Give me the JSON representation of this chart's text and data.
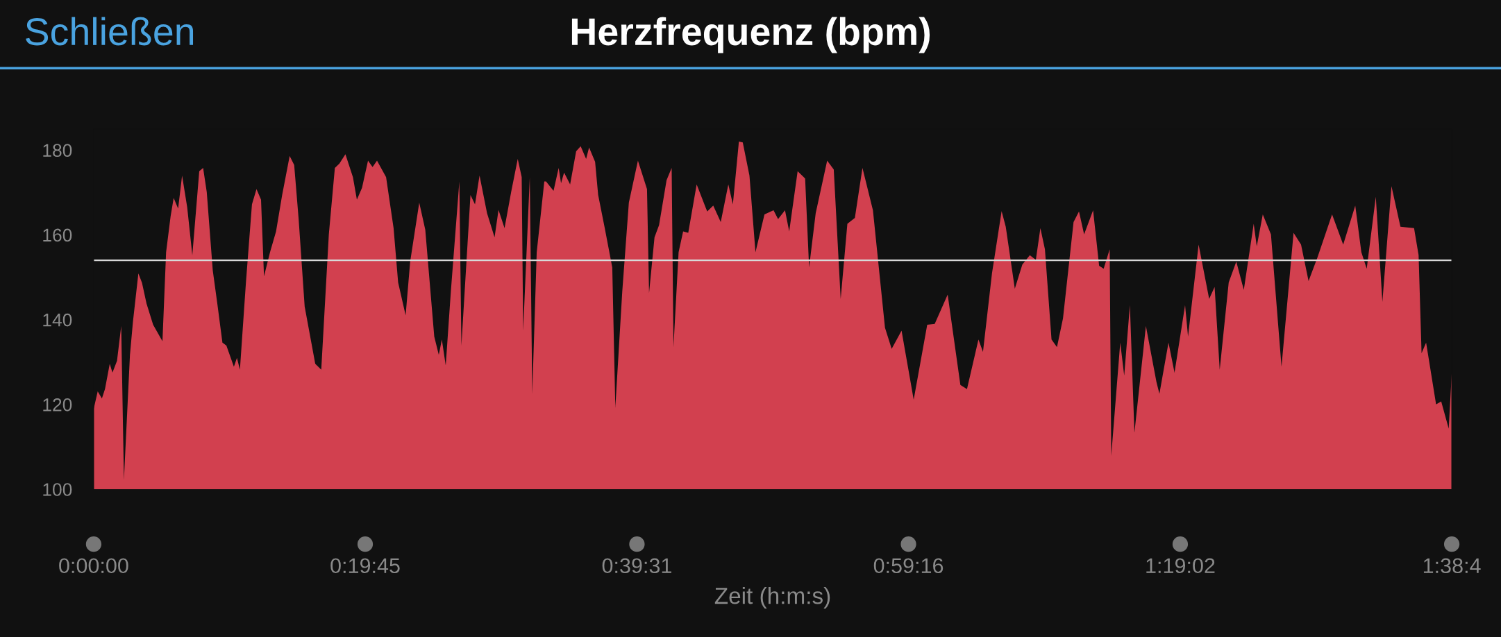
{
  "chart_data": {
    "type": "area",
    "title": "Herzfrequenz (bpm)",
    "xlabel": "Zeit (h:m:s)",
    "annotations": [
      "Schließen"
    ],
    "x": [
      0.0,
      0.0049,
      0.01,
      0.0137,
      0.0195,
      0.0228,
      0.0283,
      0.0334,
      0.0367,
      0.044,
      0.0476,
      0.0542,
      0.0586,
      0.0641,
      0.0721,
      0.0834,
      0.0878,
      0.0933,
      0.097,
      0.1024,
      0.1072,
      0.1134,
      0.1196,
      0.128,
      0.1327,
      0.1371,
      0.1444,
      0.1499,
      0.1561,
      0.1609,
      0.17,
      0.1737,
      0.1773,
      0.1846,
      0.1919,
      0.1974,
      0.2029,
      0.2065,
      0.2138,
      0.2211,
      0.2285,
      0.2376,
      0.2431,
      0.2485,
      0.2558,
      0.2686,
      0.2759,
      0.2851,
      0.2924,
      0.2979,
      0.3052,
      0.3143,
      0.3191,
      0.3253,
      0.3326,
      0.3381,
      0.3435,
      0.3545,
      0.3636,
      0.3691,
      0.3782,
      0.3837,
      0.3947,
      0.402,
      0.4129,
      0.4184,
      0.4221,
      0.4268,
      0.433,
      0.4433,
      0.4458,
      0.4568,
      0.4623,
      0.4678,
      0.4769,
      0.486,
      0.4908,
      0.4981,
      0.5061,
      0.5141,
      0.5189,
      0.5207,
      0.5287,
      0.5317,
      0.5371,
      0.5463,
      0.5484,
      0.5575,
      0.5637,
      0.5666,
      0.5703,
      0.5776,
      0.5849,
      0.5904,
      0.597,
      0.6006,
      0.6079,
      0.6116,
      0.6196,
      0.6287,
      0.6324,
      0.6408,
      0.6488,
      0.6598,
      0.6708,
      0.6733,
      0.6799,
      0.6854,
      0.6945,
      0.7007,
      0.7029,
      0.7091,
      0.7146,
      0.7208,
      0.731,
      0.7438,
      0.7511,
      0.7602,
      0.7694,
      0.7749,
      0.7822,
      0.7869,
      0.795,
      0.8023,
      0.8132,
      0.8242,
      0.8297,
      0.8381,
      0.8432,
      0.8534,
      0.8625,
      0.8673,
      0.8753,
      0.8892,
      0.8972,
      0.9056,
      0.9137,
      0.9228,
      0.932,
      0.9447,
      0.9593,
      0.9674,
      0.9794,
      0.9941,
      1.0105,
      1.0196,
      1.0353,
      1.0507,
      1.0587,
      1.0726,
      1.0781,
      1.089,
      1.1007,
      1.1057,
      1.1167,
      1.1258,
      1.1349,
      1.1422,
      1.1477,
      1.1532,
      1.1612,
      1.1678,
      1.1751,
      1.1879,
      1.1945,
      1.2007,
      1.2116,
      1.2189,
      1.2244,
      1.2317,
      1.2336,
      1.2445,
      1.2493,
      1.2562,
      1.2617,
      1.2756,
      1.2884,
      1.292,
      1.303,
      1.3103,
      1.3231,
      1.3267,
      1.3395,
      1.3523,
      1.3589,
      1.3651,
      1.376,
      1.3852,
      1.3943,
      1.4063,
      1.41,
      1.4173,
      1.4272,
      1.44,
      1.4546,
      1.4637,
      1.4728,
      1.4838,
      1.5013,
      1.5148,
      1.5294,
      1.5368,
      1.5433,
      1.5543,
      1.5623,
      1.5733,
      1.5842,
      1.6007,
      1.6062,
      1.6098,
      1.6153,
      1.6274,
      1.6336,
      1.6427,
      1.6464
    ],
    "series": [
      {
        "color": "#d2404f",
        "values": [
          118.9,
          123.1,
          121.4,
          123.6,
          129.6,
          127.5,
          130.3,
          138.5,
          102.2,
          131.7,
          139.5,
          150.9,
          148.7,
          143.8,
          138.8,
          134.9,
          155.9,
          164.4,
          168.7,
          166.2,
          174.0,
          166.5,
          155.2,
          175.0,
          175.8,
          170.1,
          151.6,
          143.8,
          134.6,
          133.9,
          128.9,
          131.0,
          128.2,
          148.8,
          167.2,
          170.8,
          168.3,
          150.2,
          155.9,
          160.8,
          169.4,
          178.6,
          176.5,
          163.7,
          143.1,
          129.6,
          128.2,
          160.1,
          175.8,
          176.8,
          179.0,
          173.6,
          168.3,
          171.1,
          177.5,
          176.0,
          177.5,
          173.6,
          161.6,
          148.8,
          141.0,
          153.7,
          167.6,
          161.2,
          136.0,
          131.7,
          135.3,
          129.2,
          146.6,
          172.6,
          133.9,
          169.4,
          167.2,
          174.0,
          165.1,
          159.4,
          165.9,
          161.6,
          170.1,
          177.9,
          173.6,
          137.4,
          173.6,
          122.5,
          155.9,
          172.6,
          172.6,
          170.4,
          175.8,
          172.2,
          174.7,
          171.9,
          179.7,
          180.9,
          177.9,
          180.6,
          177.2,
          169.4,
          161.6,
          152.3,
          119.3,
          146.6,
          167.6,
          177.5,
          170.8,
          146.3,
          159.4,
          162.3,
          172.9,
          175.8,
          133.5,
          155.9,
          160.8,
          160.5,
          171.9,
          165.5,
          166.9,
          163.0,
          171.9,
          167.2,
          182.0,
          181.8,
          174.0,
          155.9,
          164.8,
          165.8,
          163.7,
          165.8,
          160.8,
          175.0,
          173.3,
          152.3,
          165.1,
          177.5,
          175.4,
          144.9,
          162.6,
          164.0,
          175.8,
          165.8,
          138.1,
          133.1,
          137.4,
          121.1,
          138.8,
          139.0,
          145.9,
          124.6,
          123.6,
          135.3,
          132.4,
          150.9,
          165.6,
          161.9,
          147.3,
          153.0,
          155.2,
          154.1,
          161.6,
          156.6,
          135.3,
          133.5,
          140.3,
          163.0,
          165.5,
          160.1,
          165.8,
          152.7,
          152.0,
          156.6,
          107.9,
          134.6,
          126.8,
          143.4,
          113.3,
          138.5,
          125.3,
          122.5,
          134.6,
          127.5,
          143.4,
          136.0,
          157.7,
          144.9,
          147.7,
          128.2,
          148.8,
          153.7,
          147.0,
          162.6,
          157.3,
          164.8,
          160.1,
          128.9,
          160.5,
          157.7,
          149.1,
          154.8,
          164.8,
          157.7,
          166.9,
          155.9,
          152.0,
          169.0,
          144.2,
          171.5,
          161.9,
          161.6,
          155.2,
          132.1,
          134.6,
          120.0,
          120.7,
          114.3,
          127.5
        ]
      }
    ],
    "ref_lines": [
      {
        "axis": "y",
        "value": 154,
        "color": "#d8d8d8"
      }
    ],
    "xlim": [
      0,
      1.6464
    ],
    "xticks": [
      {
        "value": 0,
        "label": "0:00:00"
      },
      {
        "value": 0.32917,
        "label": "0:19:45"
      },
      {
        "value": 0.65861,
        "label": "0:39:31"
      },
      {
        "value": 0.98778,
        "label": "0:59:16"
      },
      {
        "value": 1.31722,
        "label": "1:19:02"
      },
      {
        "value": 1.6464,
        "label": "1:38:4"
      }
    ],
    "ylim": [
      100,
      185
    ],
    "yticks": [
      100,
      120,
      140,
      160,
      180
    ],
    "grid": false,
    "legend": false
  }
}
